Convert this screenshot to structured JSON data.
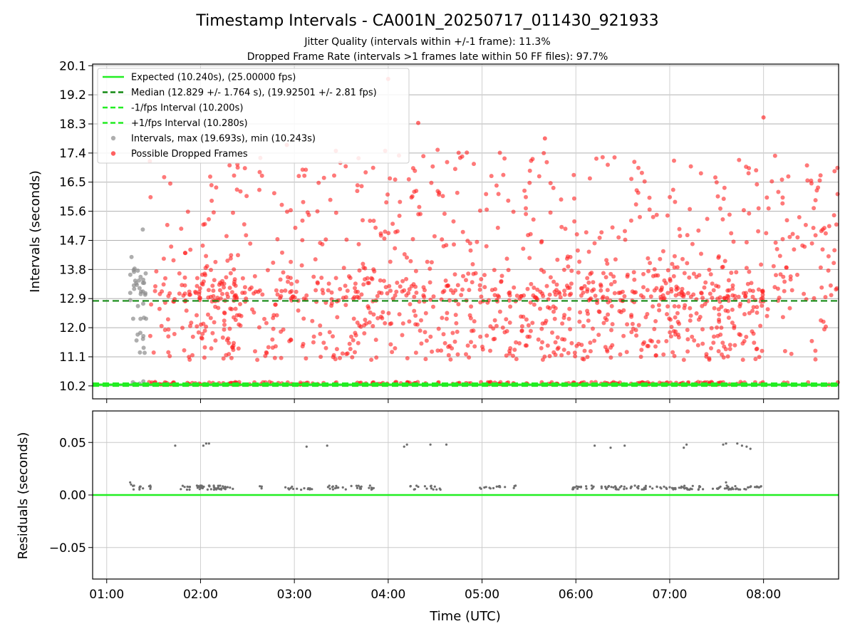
{
  "chart_data": [
    {
      "type": "scatter",
      "panel": "intervals",
      "title": "Timestamp Intervals - CA001N_20250717_011430_921933",
      "subtitle_lines": [
        "Jitter Quality (intervals within +/-1 frame): 11.3%",
        "Dropped Frame Rate (intervals >1 frames late within 50 FF files): 97.7%"
      ],
      "xlabel": "",
      "ylabel": "Intervals (seconds)",
      "ylim": [
        9.8,
        20.15
      ],
      "xlim_hours": [
        0.85,
        8.8
      ],
      "grid": true,
      "legend_position": "upper-left",
      "y_ticks": [
        "10.2",
        "11.1",
        "12.0",
        "12.9",
        "13.8",
        "14.7",
        "15.6",
        "16.5",
        "17.4",
        "18.3",
        "19.2",
        "20.1"
      ],
      "series": [
        {
          "name": "Expected (10.240s), (25.00000 fps)",
          "style": "solid",
          "color": "#22ee22",
          "value": 10.24
        },
        {
          "name": "Median (12.829 +/- 1.764 s), (19.92501 +/- 2.81 fps)",
          "style": "dashed",
          "color": "#138a13",
          "value": 12.829
        },
        {
          "name": "-1/fps Interval (10.200s)",
          "style": "dashed",
          "color": "#22ee22",
          "value": 10.2
        },
        {
          "name": "+1/fps Interval (10.280s)",
          "style": "dashed",
          "color": "#22ee22",
          "value": 10.28
        },
        {
          "name": "Intervals, max (19.693s), min (10.243s)",
          "style": "point",
          "color": "#8c8c8c",
          "max": 19.693,
          "min": 10.243
        },
        {
          "name": "Possible Dropped Frames",
          "style": "point",
          "color": "#ff2020"
        }
      ]
    },
    {
      "type": "scatter",
      "panel": "residuals",
      "xlabel": "Time (UTC)",
      "ylabel": "Residuals (seconds)",
      "ylim": [
        -0.08,
        0.08
      ],
      "y_ticks": [
        "−0.05",
        "0.00",
        "0.05"
      ],
      "x_ticks": [
        "01:00",
        "02:00",
        "03:00",
        "04:00",
        "05:00",
        "06:00",
        "07:00",
        "08:00"
      ],
      "zero_line_color": "#22ee22",
      "point_color": "#6e6e6e",
      "grid": true
    }
  ]
}
